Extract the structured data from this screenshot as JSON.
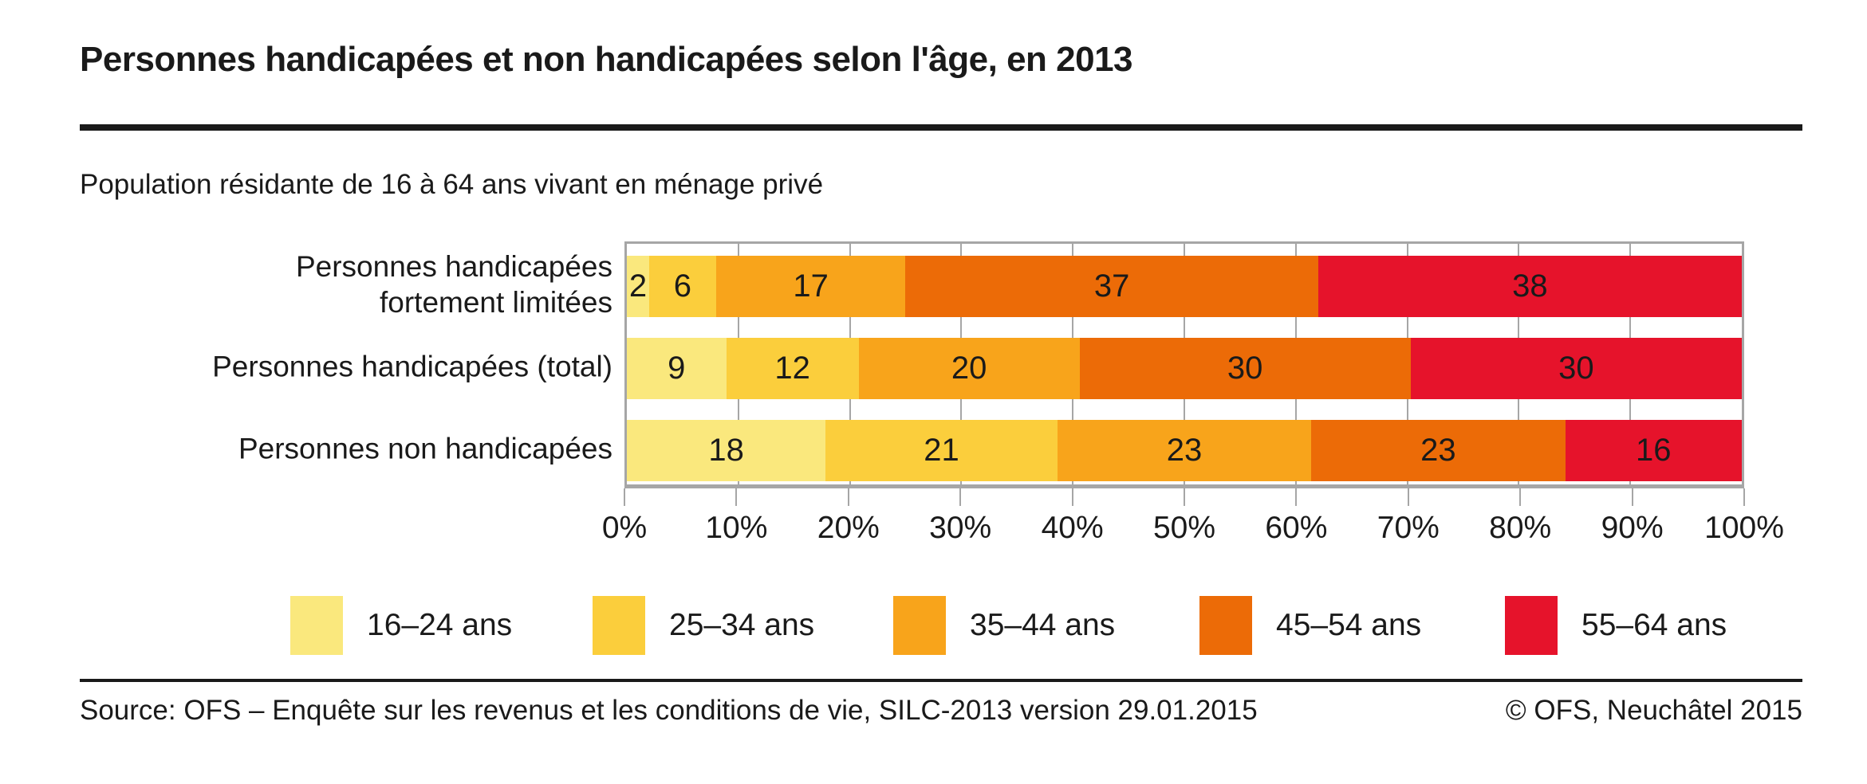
{
  "header": {
    "title": "Personnes handicapées et non handicapées selon l'âge, en 2013"
  },
  "subtitle": "Population résidante de 16 à 64 ans vivant en ménage privé",
  "chart_data": {
    "type": "bar",
    "orientation": "horizontal",
    "stacked": true,
    "title": "Personnes handicapées et non handicapées selon l'âge, en 2013",
    "categories": [
      "Personnes handicapées\nfortement limitées",
      "Personnes handicapées (total)",
      "Personnes non handicapées"
    ],
    "series": [
      {
        "name": "16–24 ans",
        "color": "#FAE87D",
        "values": [
          2,
          9,
          18
        ]
      },
      {
        "name": "25–34 ans",
        "color": "#FBCE3C",
        "values": [
          6,
          12,
          21
        ]
      },
      {
        "name": "35–44 ans",
        "color": "#F8A41B",
        "values": [
          17,
          20,
          23
        ]
      },
      {
        "name": "45–54 ans",
        "color": "#EC6B07",
        "values": [
          37,
          30,
          23
        ]
      },
      {
        "name": "55–64 ans",
        "color": "#E6132B",
        "values": [
          38,
          30,
          16
        ]
      }
    ],
    "xlim": [
      0,
      100
    ],
    "x_ticks": [
      "0%",
      "10%",
      "20%",
      "30%",
      "40%",
      "50%",
      "60%",
      "70%",
      "80%",
      "90%",
      "100%"
    ],
    "grid": true,
    "grid_color": "#a6a6a6",
    "legend_position": "bottom",
    "value_labels_shown": true
  },
  "footer": {
    "source": "Source: OFS – Enquête sur les revenus et les conditions de vie, SILC-2013 version 29.01.2015",
    "copyright": "© OFS, Neuchâtel 2015"
  }
}
